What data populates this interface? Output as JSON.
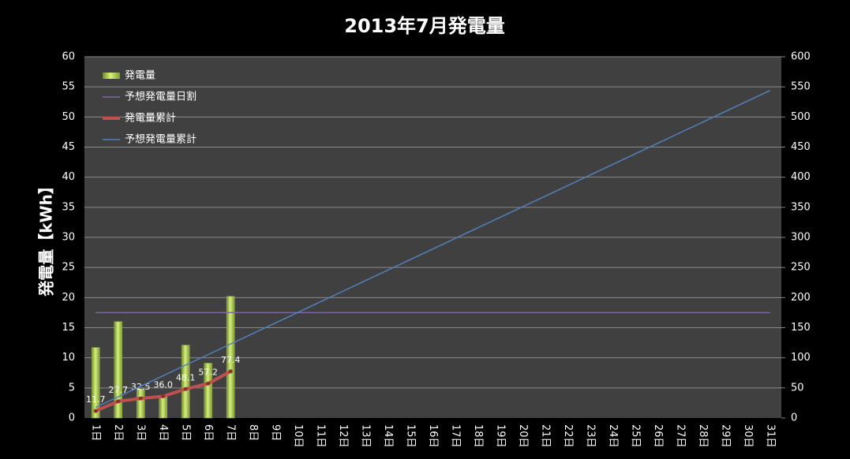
{
  "chart_data": {
    "type": "bar",
    "title": "2013年7月発電量",
    "y_label": "発電量【kWh】",
    "categories": [
      "1日",
      "2日",
      "3日",
      "4日",
      "5日",
      "6日",
      "7日",
      "8日",
      "9日",
      "10日",
      "11日",
      "12日",
      "13日",
      "14日",
      "15日",
      "16日",
      "17日",
      "18日",
      "19日",
      "20日",
      "21日",
      "22日",
      "23日",
      "24日",
      "25日",
      "26日",
      "27日",
      "28日",
      "29日",
      "30日",
      "31日"
    ],
    "ylim": [
      0,
      60
    ],
    "yticks": [
      0,
      5,
      10,
      15,
      20,
      25,
      30,
      35,
      40,
      45,
      50,
      55,
      60
    ],
    "y2lim": [
      0,
      600
    ],
    "y2ticks": [
      0,
      50,
      100,
      150,
      200,
      250,
      300,
      350,
      400,
      450,
      500,
      550,
      600
    ],
    "grid": true,
    "legend": "top-left",
    "series": [
      {
        "name": "発電量",
        "kind": "bar",
        "color": "#9bbb59",
        "axis": "y",
        "values": [
          11.7,
          16.0,
          4.8,
          3.5,
          12.1,
          9.1,
          20.2,
          null,
          null,
          null,
          null,
          null,
          null,
          null,
          null,
          null,
          null,
          null,
          null,
          null,
          null,
          null,
          null,
          null,
          null,
          null,
          null,
          null,
          null,
          null,
          null
        ]
      },
      {
        "name": "予想発電量日割",
        "kind": "line",
        "color": "#8064a2",
        "axis": "y",
        "values": [
          17.5,
          17.5,
          17.5,
          17.5,
          17.5,
          17.5,
          17.5,
          17.5,
          17.5,
          17.5,
          17.5,
          17.5,
          17.5,
          17.5,
          17.5,
          17.5,
          17.5,
          17.5,
          17.5,
          17.5,
          17.5,
          17.5,
          17.5,
          17.5,
          17.5,
          17.5,
          17.5,
          17.5,
          17.5,
          17.5,
          17.5
        ]
      },
      {
        "name": "発電量累計",
        "kind": "line",
        "color": "#c0504d",
        "axis": "y2",
        "markers": true,
        "values": [
          11.7,
          27.7,
          32.5,
          36,
          48.1,
          57.2,
          77.4,
          null,
          null,
          null,
          null,
          null,
          null,
          null,
          null,
          null,
          null,
          null,
          null,
          null,
          null,
          null,
          null,
          null,
          null,
          null,
          null,
          null,
          null,
          null,
          null
        ],
        "value_labels": [
          "11.7",
          "27.7",
          "32.5",
          "36.0",
          "48.1",
          "57.2",
          "77.4",
          null,
          null,
          null,
          null,
          null,
          null,
          null,
          null,
          null,
          null,
          null,
          null,
          null,
          null,
          null,
          null,
          null,
          null,
          null,
          null,
          null,
          null,
          null,
          null
        ]
      },
      {
        "name": "予想発電量累計",
        "kind": "line",
        "color": "#4f81bd",
        "axis": "y2",
        "values": [
          17.6,
          35.1,
          52.7,
          70.2,
          87.8,
          105.3,
          122.9,
          140.4,
          158.0,
          175.5,
          193.1,
          210.6,
          228.2,
          245.7,
          263.3,
          280.8,
          298.4,
          315.9,
          333.5,
          351.0,
          368.6,
          386.1,
          403.7,
          421.2,
          438.8,
          456.3,
          473.9,
          491.4,
          509.0,
          526.5,
          544.1
        ]
      }
    ]
  }
}
